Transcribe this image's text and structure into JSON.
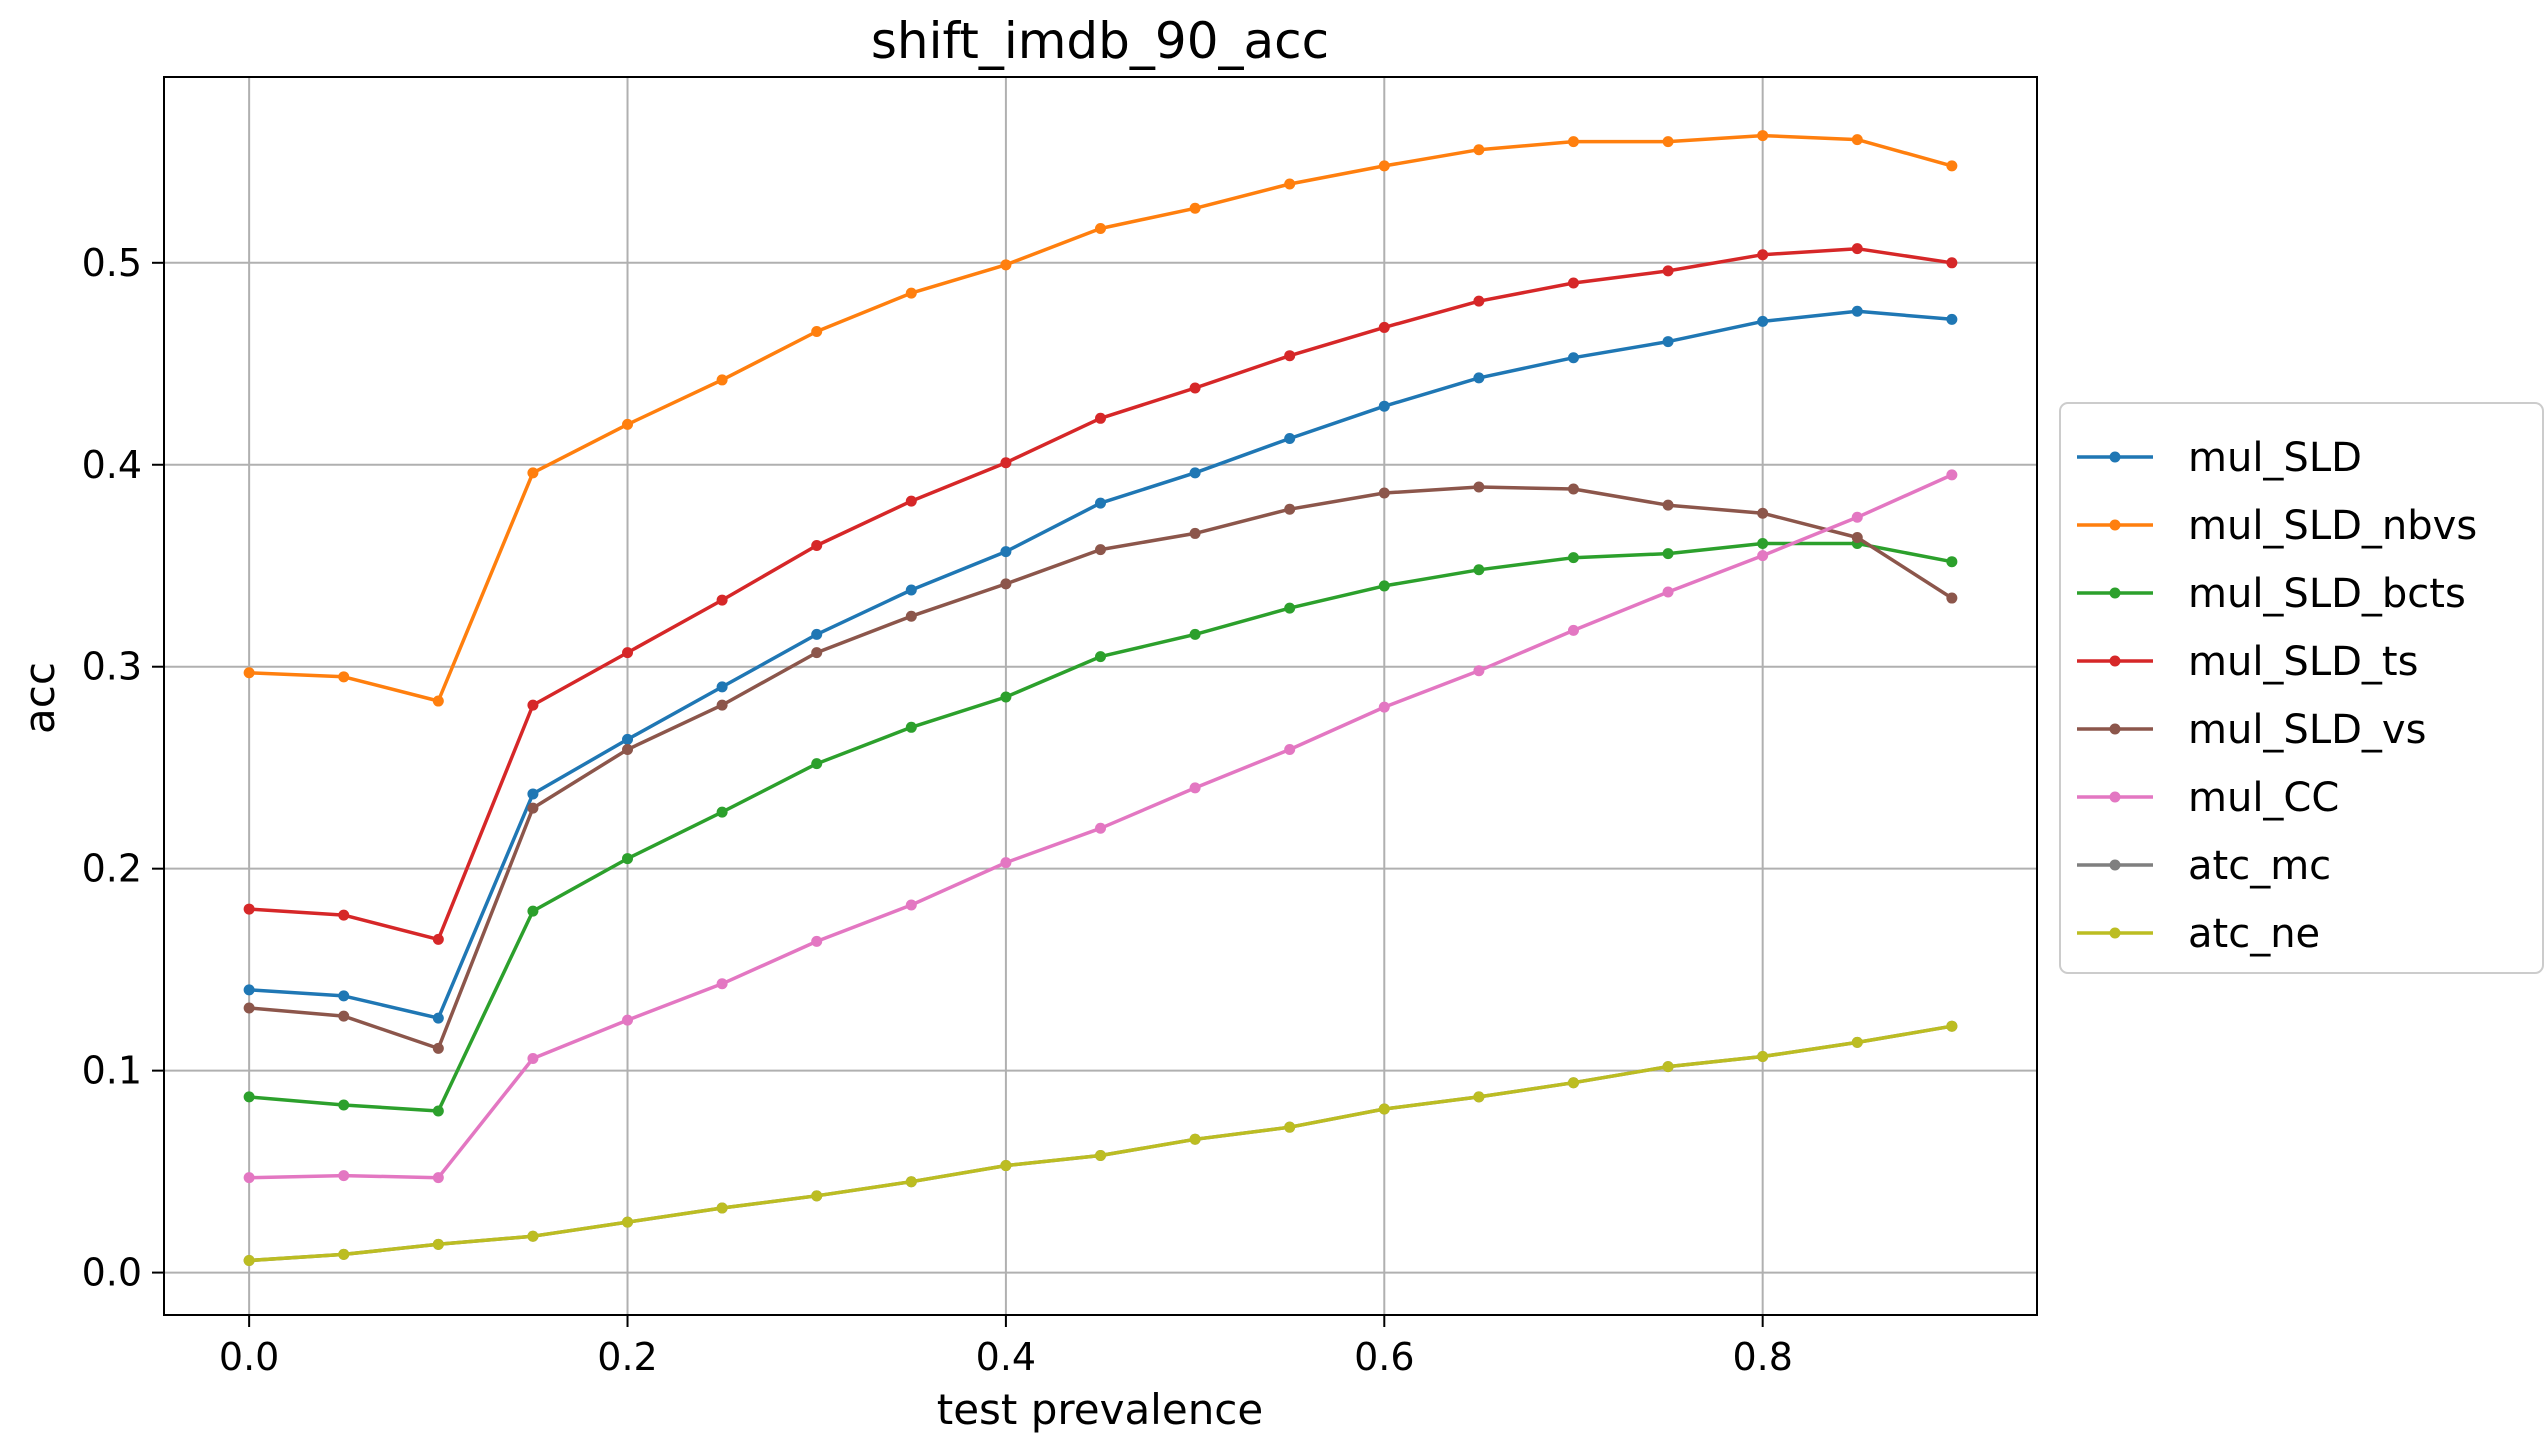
{
  "chart_data": {
    "type": "line",
    "title": "shift_imdb_90_acc",
    "xlabel": "test prevalence",
    "ylabel": "acc",
    "xlim": [
      -0.045,
      0.945
    ],
    "ylim": [
      -0.021,
      0.592
    ],
    "xticks": [
      0.0,
      0.2,
      0.4,
      0.6,
      0.8
    ],
    "xtick_labels": [
      "0.0",
      "0.2",
      "0.4",
      "0.6",
      "0.8"
    ],
    "yticks": [
      0.0,
      0.1,
      0.2,
      0.3,
      0.4,
      0.5
    ],
    "ytick_labels": [
      "0.0",
      "0.1",
      "0.2",
      "0.3",
      "0.4",
      "0.5"
    ],
    "grid": true,
    "legend_position": "outside right",
    "x": [
      0.0,
      0.05,
      0.1,
      0.15,
      0.2,
      0.25,
      0.3,
      0.35,
      0.4,
      0.45,
      0.5,
      0.55,
      0.6,
      0.65,
      0.7,
      0.75,
      0.8,
      0.85,
      0.9
    ],
    "series": [
      {
        "name": "mul_SLD",
        "color": "#1f77b4",
        "values": [
          0.14,
          0.137,
          0.126,
          0.237,
          0.264,
          0.29,
          0.316,
          0.338,
          0.357,
          0.381,
          0.396,
          0.413,
          0.429,
          0.443,
          0.453,
          0.461,
          0.471,
          0.476,
          0.472
        ]
      },
      {
        "name": "mul_SLD_nbvs",
        "color": "#ff7f0e",
        "values": [
          0.297,
          0.295,
          0.283,
          0.396,
          0.42,
          0.442,
          0.466,
          0.485,
          0.499,
          0.517,
          0.527,
          0.539,
          0.548,
          0.556,
          0.56,
          0.56,
          0.563,
          0.561,
          0.548
        ]
      },
      {
        "name": "mul_SLD_bcts",
        "color": "#2ca02c",
        "values": [
          0.087,
          0.083,
          0.08,
          0.179,
          0.205,
          0.228,
          0.252,
          0.27,
          0.285,
          0.305,
          0.316,
          0.329,
          0.34,
          0.348,
          0.354,
          0.356,
          0.361,
          0.361,
          0.352
        ]
      },
      {
        "name": "mul_SLD_ts",
        "color": "#d62728",
        "values": [
          0.18,
          0.177,
          0.165,
          0.281,
          0.307,
          0.333,
          0.36,
          0.382,
          0.401,
          0.423,
          0.438,
          0.454,
          0.468,
          0.481,
          0.49,
          0.496,
          0.504,
          0.507,
          0.5
        ]
      },
      {
        "name": "mul_SLD_vs",
        "color": "#8c564b",
        "values": [
          0.131,
          0.127,
          0.111,
          0.23,
          0.259,
          0.281,
          0.307,
          0.325,
          0.341,
          0.358,
          0.366,
          0.378,
          0.386,
          0.389,
          0.388,
          0.38,
          0.376,
          0.364,
          0.334
        ]
      },
      {
        "name": "mul_CC",
        "color": "#e377c2",
        "values": [
          0.047,
          0.048,
          0.047,
          0.106,
          0.125,
          0.143,
          0.164,
          0.182,
          0.203,
          0.22,
          0.24,
          0.259,
          0.28,
          0.298,
          0.318,
          0.337,
          0.355,
          0.374,
          0.395
        ]
      },
      {
        "name": "atc_mc",
        "color": "#7f7f7f",
        "values": [
          0.006,
          0.009,
          0.014,
          0.018,
          0.025,
          0.032,
          0.038,
          0.045,
          0.053,
          0.058,
          0.066,
          0.072,
          0.081,
          0.087,
          0.094,
          0.102,
          0.107,
          0.114,
          0.122
        ]
      },
      {
        "name": "atc_ne",
        "color": "#bcbd22",
        "values": [
          0.006,
          0.009,
          0.014,
          0.018,
          0.025,
          0.032,
          0.038,
          0.045,
          0.053,
          0.058,
          0.066,
          0.072,
          0.081,
          0.087,
          0.094,
          0.102,
          0.107,
          0.114,
          0.122
        ]
      }
    ]
  }
}
